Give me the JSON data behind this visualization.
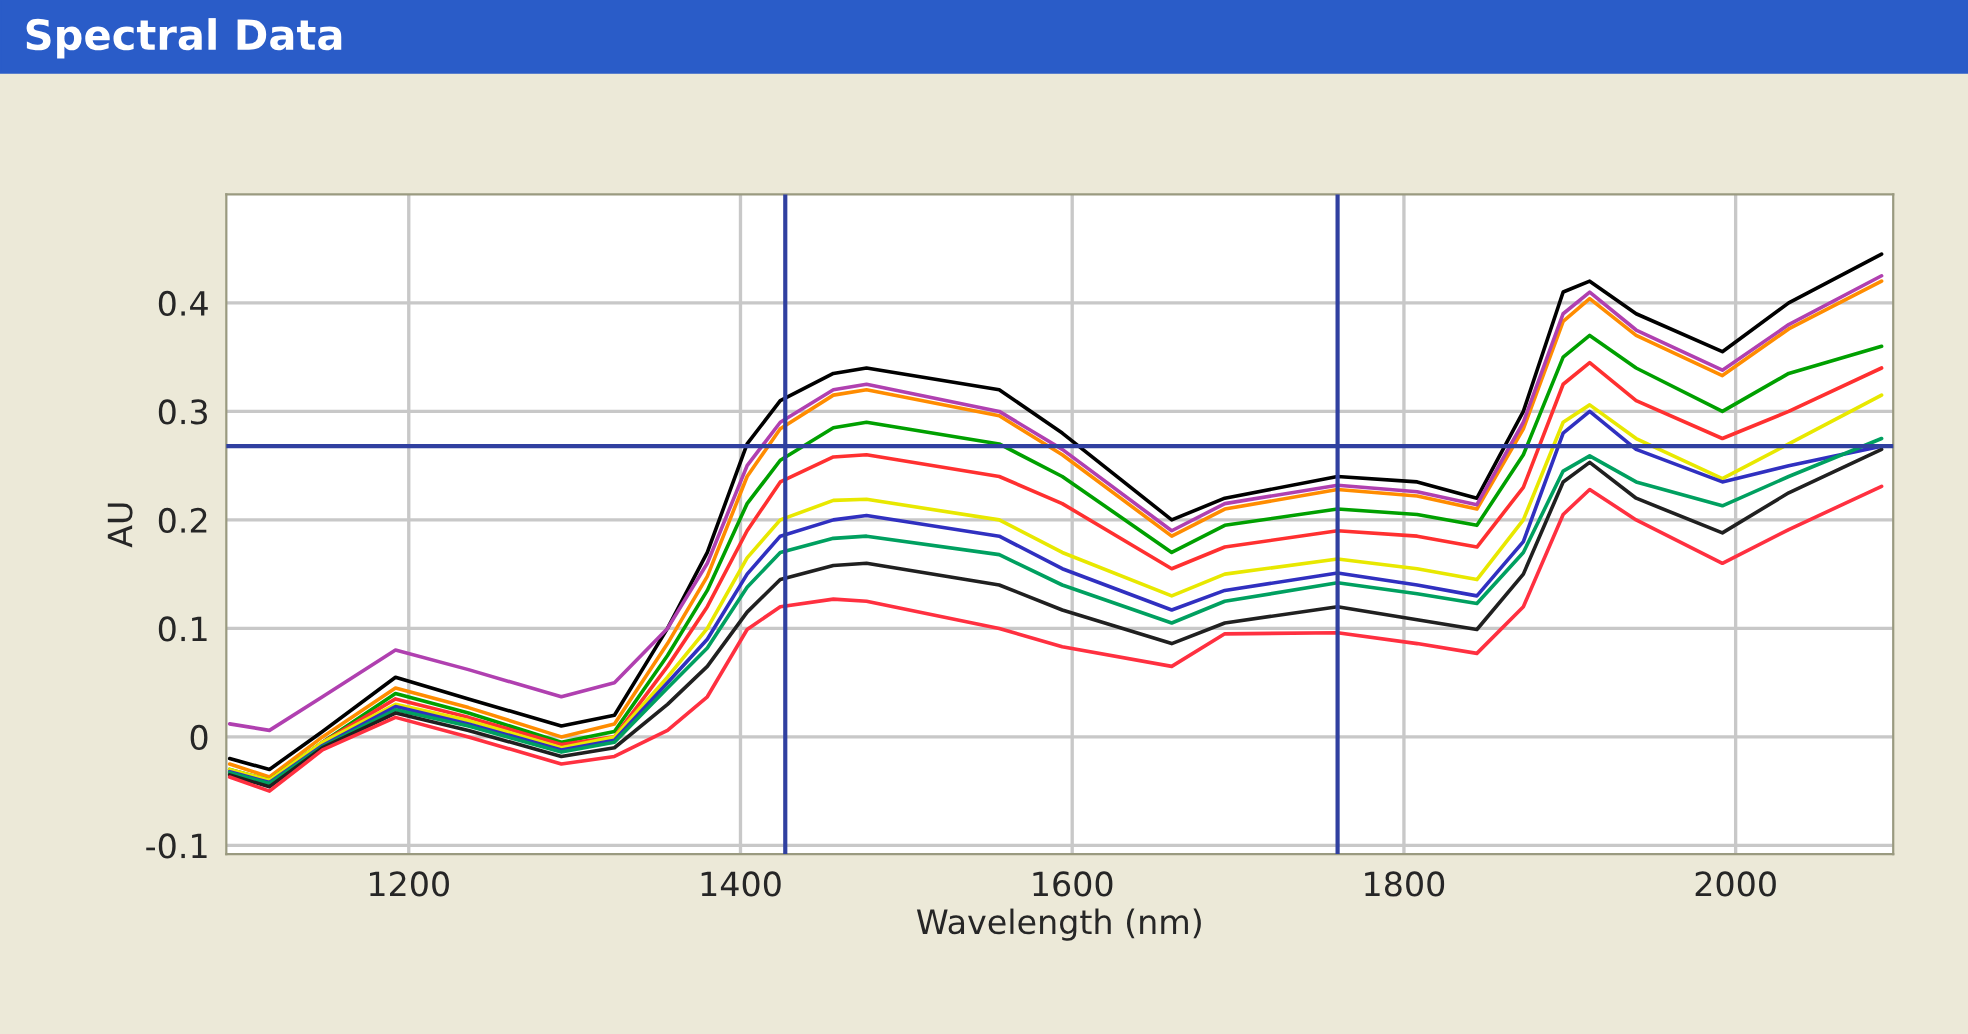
{
  "chart_data": {
    "type": "line",
    "title": "Spectral Data",
    "xlabel": "Wavelength (nm)",
    "ylabel": "AU",
    "x": [
      1092,
      1116,
      1148,
      1192,
      1236,
      1292,
      1324,
      1356,
      1380,
      1404,
      1424,
      1456,
      1476,
      1556,
      1594,
      1660,
      1692,
      1760,
      1808,
      1844,
      1872,
      1896,
      1912,
      1940,
      1992,
      2032,
      2088
    ],
    "series": [
      {
        "color": "#000000",
        "values": [
          -0.02,
          -0.03,
          0.005,
          0.055,
          0.035,
          0.01,
          0.02,
          0.1,
          0.17,
          0.27,
          0.31,
          0.335,
          0.34,
          0.32,
          0.28,
          0.2,
          0.22,
          0.24,
          0.235,
          0.22,
          0.3,
          0.41,
          0.42,
          0.39,
          0.355,
          0.4,
          0.445
        ]
      },
      {
        "color": "#ff8c00",
        "values": [
          -0.025,
          -0.037,
          0,
          0.045,
          0.027,
          0,
          0.012,
          0.086,
          0.148,
          0.24,
          0.284,
          0.315,
          0.32,
          0.296,
          0.26,
          0.185,
          0.21,
          0.228,
          0.222,
          0.21,
          0.284,
          0.383,
          0.404,
          0.37,
          0.333,
          0.376,
          0.42
        ]
      },
      {
        "color": "#00a000",
        "values": [
          -0.03,
          -0.04,
          -0.005,
          0.04,
          0.022,
          -0.005,
          0.005,
          0.075,
          0.135,
          0.215,
          0.255,
          0.285,
          0.29,
          0.27,
          0.24,
          0.17,
          0.195,
          0.21,
          0.205,
          0.195,
          0.26,
          0.35,
          0.37,
          0.34,
          0.3,
          0.335,
          0.36
        ]
      },
      {
        "color": "#ff3030",
        "values": [
          -0.035,
          -0.045,
          -0.005,
          0.035,
          0.018,
          -0.007,
          0,
          0.065,
          0.12,
          0.19,
          0.235,
          0.258,
          0.26,
          0.24,
          0.215,
          0.155,
          0.175,
          0.19,
          0.185,
          0.175,
          0.23,
          0.325,
          0.345,
          0.31,
          0.275,
          0.3,
          0.34
        ]
      },
      {
        "color": "#e8e800",
        "values": [
          -0.03,
          -0.04,
          -0.005,
          0.03,
          0.015,
          -0.01,
          0,
          0.055,
          0.1,
          0.165,
          0.2,
          0.218,
          0.219,
          0.2,
          0.17,
          0.13,
          0.15,
          0.164,
          0.155,
          0.145,
          0.2,
          0.29,
          0.306,
          0.275,
          0.238,
          0.27,
          0.315
        ]
      },
      {
        "color": "#3030c0",
        "values": [
          -0.032,
          -0.042,
          -0.008,
          0.028,
          0.012,
          -0.012,
          -0.003,
          0.05,
          0.09,
          0.15,
          0.185,
          0.2,
          0.204,
          0.185,
          0.155,
          0.117,
          0.135,
          0.151,
          0.14,
          0.13,
          0.18,
          0.28,
          0.3,
          0.265,
          0.235,
          0.25,
          0.268
        ]
      },
      {
        "color": "#00a060",
        "values": [
          -0.033,
          -0.043,
          -0.009,
          0.025,
          0.01,
          -0.014,
          -0.005,
          0.045,
          0.082,
          0.138,
          0.17,
          0.183,
          0.185,
          0.168,
          0.14,
          0.105,
          0.125,
          0.142,
          0.132,
          0.123,
          0.17,
          0.245,
          0.259,
          0.235,
          0.213,
          0.24,
          0.275
        ]
      },
      {
        "color": "#202020",
        "values": [
          -0.035,
          -0.046,
          -0.01,
          0.022,
          0.006,
          -0.018,
          -0.01,
          0.03,
          0.065,
          0.115,
          0.145,
          0.158,
          0.16,
          0.14,
          0.117,
          0.086,
          0.105,
          0.12,
          0.108,
          0.099,
          0.15,
          0.235,
          0.253,
          0.22,
          0.188,
          0.225,
          0.265
        ]
      },
      {
        "color": "#ff3040",
        "values": [
          -0.037,
          -0.05,
          -0.012,
          0.018,
          0,
          -0.025,
          -0.018,
          0.006,
          0.037,
          0.099,
          0.12,
          0.127,
          0.125,
          0.1,
          0.083,
          0.065,
          0.095,
          0.096,
          0.086,
          0.077,
          0.12,
          0.205,
          0.228,
          0.2,
          0.16,
          0.191,
          0.231
        ]
      },
      {
        "color": "#b040b0",
        "values": [
          0.012,
          0.006,
          0.037,
          0.08,
          0.062,
          0.037,
          0.05,
          0.1,
          0.16,
          0.25,
          0.29,
          0.32,
          0.325,
          0.3,
          0.265,
          0.19,
          0.215,
          0.232,
          0.226,
          0.214,
          0.29,
          0.39,
          0.41,
          0.375,
          0.338,
          0.38,
          0.425
        ]
      }
    ],
    "xlim": [
      1090,
      2095
    ],
    "ylim": [
      -0.108,
      0.5
    ],
    "xticks": [
      1200,
      1400,
      1600,
      1800,
      2000
    ],
    "yticks": [
      -0.1,
      0,
      0.1,
      0.2,
      0.3,
      0.4
    ],
    "ref_lines": [
      {
        "axis": "y",
        "value": 0.268,
        "color": "#3040a0"
      },
      {
        "axis": "x",
        "value": 1427,
        "color": "#3040a0"
      },
      {
        "axis": "x",
        "value": 1760,
        "color": "#3040a0"
      }
    ],
    "grid": true,
    "marker": "none",
    "line_style": "solid"
  }
}
